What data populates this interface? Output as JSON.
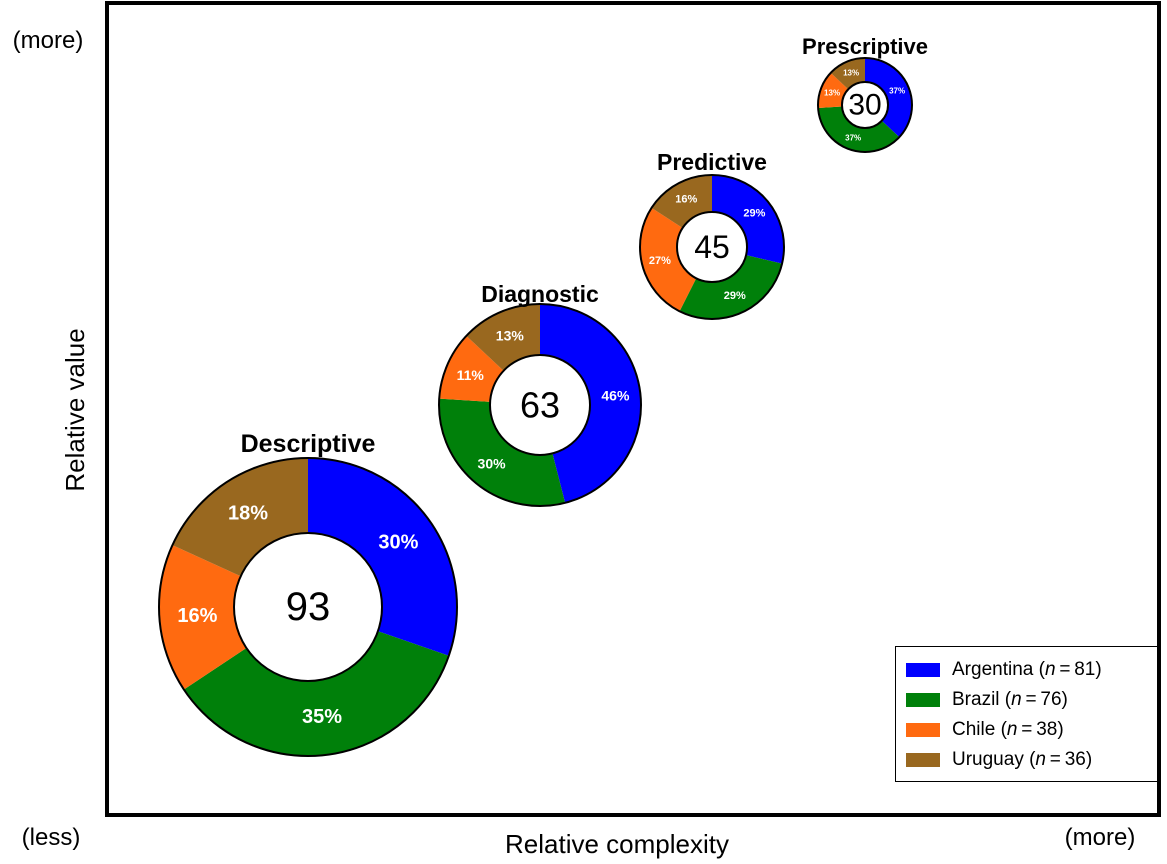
{
  "chart_data": {
    "type": "donut-bubble",
    "xlabel": "Relative complexity",
    "ylabel": "Relative value",
    "x_low_label": "(less)",
    "x_high_label": "(more)",
    "y_high_label": "(more)",
    "series": [
      {
        "name": "Argentina",
        "n": "81",
        "color": "#0000FF"
      },
      {
        "name": "Brazil",
        "n": "76",
        "color": "#00800A"
      },
      {
        "name": "Chile",
        "n": "38",
        "color": "#FF6A10"
      },
      {
        "name": "Uruguay",
        "n": "36",
        "color": "#99681F"
      }
    ],
    "donuts": [
      {
        "category": "Descriptive",
        "total": 93,
        "values": [
          30,
          35,
          16,
          18
        ]
      },
      {
        "category": "Diagnostic",
        "total": 63,
        "values": [
          46,
          30,
          11,
          13
        ]
      },
      {
        "category": "Predictive",
        "total": 45,
        "values": [
          29,
          29,
          27,
          16
        ]
      },
      {
        "category": "Prescriptive",
        "total": 30,
        "values": [
          37,
          37,
          13,
          13
        ]
      }
    ]
  }
}
